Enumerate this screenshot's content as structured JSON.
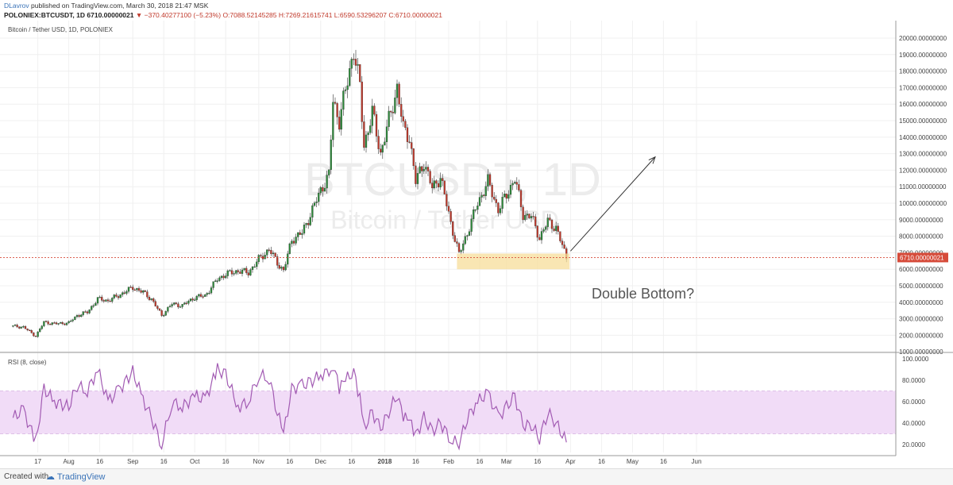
{
  "header": {
    "author": "DLavrov",
    "published_text": "published on TradingView.com, March 30, 2018 21:47 MSK",
    "symbol": "POLONIEX:BTCUSDT, 1D",
    "last_value": "6710.00000021",
    "change": "▼ −370.40277100 (−5.23%)",
    "ohlc": "O:7088.52145285 H:7269.21615741 L:6590.53296207 C:6710.00000021"
  },
  "legend": {
    "main": "Bitcoin / Tether USD, 1D, POLONIEX",
    "rsi": "RSI (8, close)"
  },
  "watermark": {
    "line1": "BTCUSDT, 1D",
    "line2": "Bitcoin / Tether USD"
  },
  "annotation": {
    "text": "Double Bottom?"
  },
  "footer": {
    "created_with": "Created with",
    "logo_text": "TradingView"
  },
  "colors": {
    "up": "#2e8b3b",
    "down": "#c0392b",
    "rsi_line": "#a25bb3",
    "rsi_band": "#f1dcf7",
    "zone": "#f7dd9a",
    "last_price_tag": "#d64b3a"
  },
  "chart_data": [
    {
      "type": "candlestick",
      "title": "Bitcoin / Tether USD, 1D, POLONIEX",
      "ylim": [
        1000,
        20000
      ],
      "y_ticks": [
        "20000.00000000",
        "19000.00000000",
        "18000.00000000",
        "17000.00000000",
        "16000.00000000",
        "15000.00000000",
        "14000.00000000",
        "13000.00000000",
        "12000.00000000",
        "11000.00000000",
        "10000.00000000",
        "9000.00000000",
        "8000.00000000",
        "7000.00000000",
        "6000.00000000",
        "5000.00000000",
        "4000.00000000",
        "3000.00000000",
        "2000.00000000",
        "1000.00000000"
      ],
      "x_ticks": [
        "17",
        "Aug",
        "16",
        "Sep",
        "16",
        "Oct",
        "16",
        "Nov",
        "16",
        "Dec",
        "16",
        "2018",
        "16",
        "Feb",
        "16",
        "Mar",
        "16",
        "Apr",
        "16",
        "May",
        "16",
        "Jun"
      ],
      "last_price_label": "6710.00000021",
      "close_series": [
        {
          "date": "2017-07-05",
          "close": 2550
        },
        {
          "date": "2017-07-10",
          "close": 2500
        },
        {
          "date": "2017-07-16",
          "close": 1950
        },
        {
          "date": "2017-07-20",
          "close": 2800
        },
        {
          "date": "2017-07-25",
          "close": 2700
        },
        {
          "date": "2017-08-01",
          "close": 2750
        },
        {
          "date": "2017-08-05",
          "close": 3200
        },
        {
          "date": "2017-08-10",
          "close": 3400
        },
        {
          "date": "2017-08-15",
          "close": 4200
        },
        {
          "date": "2017-08-20",
          "close": 4100
        },
        {
          "date": "2017-08-25",
          "close": 4400
        },
        {
          "date": "2017-09-01",
          "close": 4900
        },
        {
          "date": "2017-09-06",
          "close": 4600
        },
        {
          "date": "2017-09-10",
          "close": 4200
        },
        {
          "date": "2017-09-15",
          "close": 3200
        },
        {
          "date": "2017-09-20",
          "close": 3900
        },
        {
          "date": "2017-09-25",
          "close": 3800
        },
        {
          "date": "2017-10-01",
          "close": 4300
        },
        {
          "date": "2017-10-06",
          "close": 4400
        },
        {
          "date": "2017-10-12",
          "close": 5400
        },
        {
          "date": "2017-10-16",
          "close": 5700
        },
        {
          "date": "2017-10-22",
          "close": 5900
        },
        {
          "date": "2017-10-27",
          "close": 5800
        },
        {
          "date": "2017-11-01",
          "close": 6600
        },
        {
          "date": "2017-11-06",
          "close": 7200
        },
        {
          "date": "2017-11-10",
          "close": 6400
        },
        {
          "date": "2017-11-13",
          "close": 5900
        },
        {
          "date": "2017-11-17",
          "close": 7800
        },
        {
          "date": "2017-11-22",
          "close": 8200
        },
        {
          "date": "2017-11-26",
          "close": 9300
        },
        {
          "date": "2017-12-01",
          "close": 10800
        },
        {
          "date": "2017-12-05",
          "close": 11700
        },
        {
          "date": "2017-12-07",
          "close": 16200
        },
        {
          "date": "2017-12-10",
          "close": 15000
        },
        {
          "date": "2017-12-13",
          "close": 16800
        },
        {
          "date": "2017-12-17",
          "close": 19300
        },
        {
          "date": "2017-12-20",
          "close": 17000
        },
        {
          "date": "2017-12-22",
          "close": 13500
        },
        {
          "date": "2017-12-26",
          "close": 15500
        },
        {
          "date": "2017-12-30",
          "close": 13000
        },
        {
          "date": "2018-01-03",
          "close": 15000
        },
        {
          "date": "2018-01-07",
          "close": 17000
        },
        {
          "date": "2018-01-10",
          "close": 14500
        },
        {
          "date": "2018-01-13",
          "close": 14000
        },
        {
          "date": "2018-01-16",
          "close": 11300
        },
        {
          "date": "2018-01-20",
          "close": 12500
        },
        {
          "date": "2018-01-24",
          "close": 10900
        },
        {
          "date": "2018-01-28",
          "close": 11600
        },
        {
          "date": "2018-02-02",
          "close": 8800
        },
        {
          "date": "2018-02-06",
          "close": 6900
        },
        {
          "date": "2018-02-10",
          "close": 8200
        },
        {
          "date": "2018-02-15",
          "close": 10000
        },
        {
          "date": "2018-02-20",
          "close": 11300
        },
        {
          "date": "2018-02-25",
          "close": 9600
        },
        {
          "date": "2018-03-01",
          "close": 10500
        },
        {
          "date": "2018-03-05",
          "close": 11500
        },
        {
          "date": "2018-03-09",
          "close": 9300
        },
        {
          "date": "2018-03-13",
          "close": 9200
        },
        {
          "date": "2018-03-17",
          "close": 7900
        },
        {
          "date": "2018-03-21",
          "close": 8900
        },
        {
          "date": "2018-03-25",
          "close": 8500
        },
        {
          "date": "2018-03-30",
          "close": 6710
        }
      ]
    },
    {
      "type": "line",
      "title": "RSI (8, close)",
      "ylim": [
        15,
        100
      ],
      "y_ticks": [
        "100.0000",
        "80.0000",
        "60.0000",
        "40.0000",
        "20.0000"
      ],
      "band": [
        30,
        70
      ],
      "series": [
        {
          "values_by_date": [
            {
              "date": "2017-07-05",
              "v": 45
            },
            {
              "date": "2017-07-10",
              "v": 52
            },
            {
              "date": "2017-07-16",
              "v": 22
            },
            {
              "date": "2017-07-20",
              "v": 72
            },
            {
              "date": "2017-07-25",
              "v": 60
            },
            {
              "date": "2017-08-01",
              "v": 55
            },
            {
              "date": "2017-08-05",
              "v": 75
            },
            {
              "date": "2017-08-10",
              "v": 70
            },
            {
              "date": "2017-08-15",
              "v": 90
            },
            {
              "date": "2017-08-20",
              "v": 60
            },
            {
              "date": "2017-08-25",
              "v": 70
            },
            {
              "date": "2017-09-01",
              "v": 88
            },
            {
              "date": "2017-09-06",
              "v": 62
            },
            {
              "date": "2017-09-10",
              "v": 45
            },
            {
              "date": "2017-09-15",
              "v": 20
            },
            {
              "date": "2017-09-20",
              "v": 60
            },
            {
              "date": "2017-09-25",
              "v": 55
            },
            {
              "date": "2017-10-01",
              "v": 65
            },
            {
              "date": "2017-10-06",
              "v": 62
            },
            {
              "date": "2017-10-12",
              "v": 90
            },
            {
              "date": "2017-10-16",
              "v": 85
            },
            {
              "date": "2017-10-22",
              "v": 55
            },
            {
              "date": "2017-10-27",
              "v": 60
            },
            {
              "date": "2017-11-01",
              "v": 85
            },
            {
              "date": "2017-11-06",
              "v": 82
            },
            {
              "date": "2017-11-10",
              "v": 50
            },
            {
              "date": "2017-11-13",
              "v": 30
            },
            {
              "date": "2017-11-17",
              "v": 72
            },
            {
              "date": "2017-11-22",
              "v": 75
            },
            {
              "date": "2017-11-26",
              "v": 78
            },
            {
              "date": "2017-12-01",
              "v": 85
            },
            {
              "date": "2017-12-05",
              "v": 88
            },
            {
              "date": "2017-12-07",
              "v": 95
            },
            {
              "date": "2017-12-10",
              "v": 72
            },
            {
              "date": "2017-12-13",
              "v": 80
            },
            {
              "date": "2017-12-17",
              "v": 88
            },
            {
              "date": "2017-12-20",
              "v": 62
            },
            {
              "date": "2017-12-22",
              "v": 35
            },
            {
              "date": "2017-12-26",
              "v": 50
            },
            {
              "date": "2017-12-30",
              "v": 35
            },
            {
              "date": "2018-01-03",
              "v": 50
            },
            {
              "date": "2018-01-07",
              "v": 67
            },
            {
              "date": "2018-01-10",
              "v": 45
            },
            {
              "date": "2018-01-13",
              "v": 42
            },
            {
              "date": "2018-01-16",
              "v": 28
            },
            {
              "date": "2018-01-20",
              "v": 45
            },
            {
              "date": "2018-01-24",
              "v": 32
            },
            {
              "date": "2018-01-28",
              "v": 40
            },
            {
              "date": "2018-02-02",
              "v": 25
            },
            {
              "date": "2018-02-06",
              "v": 20
            },
            {
              "date": "2018-02-10",
              "v": 45
            },
            {
              "date": "2018-02-15",
              "v": 60
            },
            {
              "date": "2018-02-20",
              "v": 68
            },
            {
              "date": "2018-02-25",
              "v": 45
            },
            {
              "date": "2018-03-01",
              "v": 55
            },
            {
              "date": "2018-03-05",
              "v": 65
            },
            {
              "date": "2018-03-09",
              "v": 38
            },
            {
              "date": "2018-03-13",
              "v": 38
            },
            {
              "date": "2018-03-17",
              "v": 26
            },
            {
              "date": "2018-03-21",
              "v": 50
            },
            {
              "date": "2018-03-25",
              "v": 40
            },
            {
              "date": "2018-03-30",
              "v": 22
            }
          ]
        }
      ]
    }
  ]
}
